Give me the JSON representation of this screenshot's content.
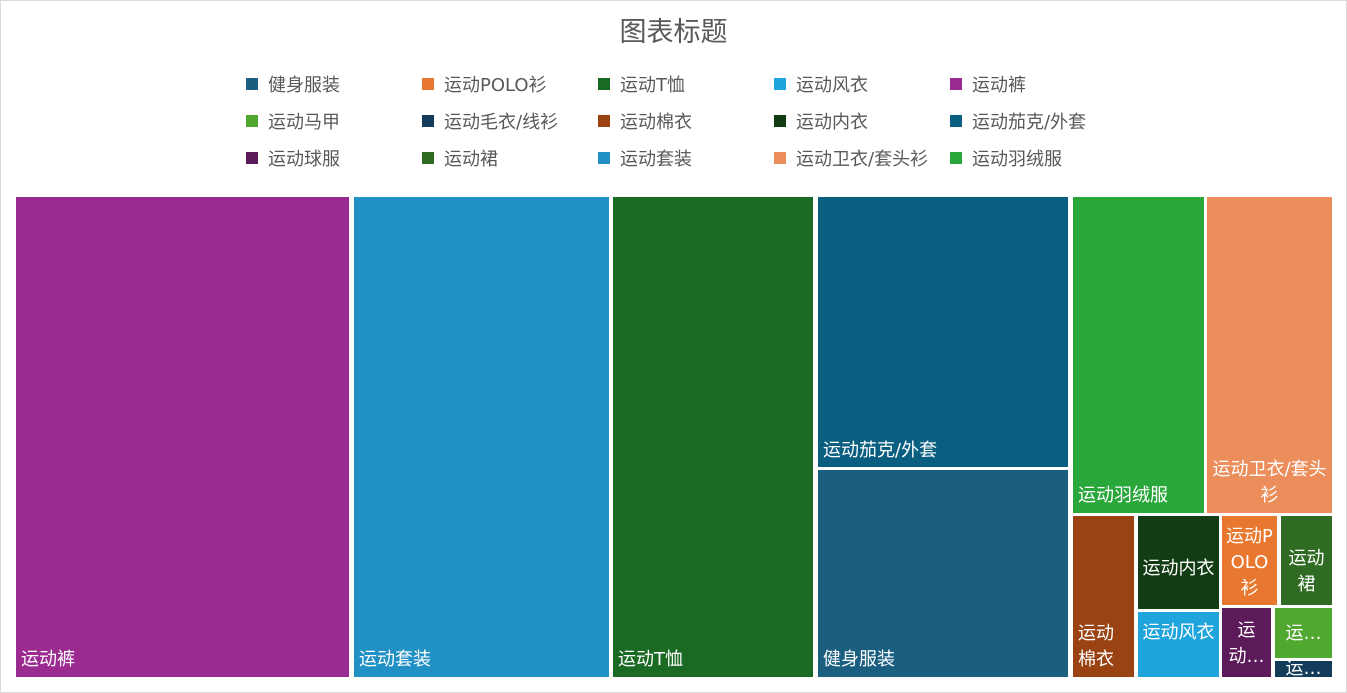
{
  "chart_data": {
    "type": "treemap",
    "title": "图表标题",
    "legend": {
      "position": "top",
      "items": [
        {
          "name": "健身服装",
          "color": "#1a5e80"
        },
        {
          "name": "运动POLO衫",
          "color": "#e8782f"
        },
        {
          "name": "运动T恤",
          "color": "#1b6a23"
        },
        {
          "name": "运动风衣",
          "color": "#1fa4dc"
        },
        {
          "name": "运动裤",
          "color": "#9c2b91"
        },
        {
          "name": "运动马甲",
          "color": "#51a830"
        },
        {
          "name": "运动毛衣/线衫",
          "color": "#133c5a"
        },
        {
          "name": "运动棉衣",
          "color": "#9a4212"
        },
        {
          "name": "运动内衣",
          "color": "#123d14"
        },
        {
          "name": "运动茄克/外套",
          "color": "#0a5e80"
        },
        {
          "name": "运动球服",
          "color": "#5d1a5a"
        },
        {
          "name": "运动裙",
          "color": "#2f6b23"
        },
        {
          "name": "运动套装",
          "color": "#2190c4"
        },
        {
          "name": "运动卫衣/套头衫",
          "color": "#ec8d5c"
        },
        {
          "name": "运动羽绒服",
          "color": "#2aa73b"
        }
      ]
    },
    "tiles": [
      {
        "name": "运动裤",
        "label": "运动裤",
        "value": 28.0,
        "color": "#9c2b91"
      },
      {
        "name": "运动套装",
        "label": "运动套装",
        "value": 21.5,
        "color": "#2190c4"
      },
      {
        "name": "运动T恤",
        "label": "运动T恤",
        "value": 16.9,
        "color": "#1b6a23"
      },
      {
        "name": "运动茄克/外套",
        "label": "运动茄克/外套",
        "value": 11.7,
        "color": "#0a5e80"
      },
      {
        "name": "健身服装",
        "label": "健身服装",
        "value": 9.3,
        "color": "#1a5e80"
      },
      {
        "name": "运动羽绒服",
        "label": "运动羽绒服",
        "value": 6.9,
        "color": "#2aa73b"
      },
      {
        "name": "运动卫衣/套头衫",
        "label": "运动卫衣/套头衫",
        "value": 6.9,
        "color": "#ec8d5c"
      },
      {
        "name": "运动棉衣",
        "label": "运动棉衣",
        "value": 1.9,
        "color": "#9a4212"
      },
      {
        "name": "运动内衣",
        "label": "运动内衣",
        "value": 1.4,
        "color": "#123d14"
      },
      {
        "name": "运动风衣",
        "label": "运动风衣",
        "value": 1.1,
        "color": "#1fa4dc"
      },
      {
        "name": "运动POLO衫",
        "label": "运动POLO衫",
        "value": 1.0,
        "color": "#e8782f"
      },
      {
        "name": "运动裙",
        "label": "运动裙",
        "value": 0.9,
        "color": "#2f6b23"
      },
      {
        "name": "运动球服",
        "label": "运动…",
        "value": 0.8,
        "color": "#5d1a5a"
      },
      {
        "name": "运动马甲",
        "label": "运…",
        "value": 0.6,
        "color": "#51a830"
      },
      {
        "name": "运动毛衣/线衫",
        "label": "运…",
        "value": 0.2,
        "color": "#133c5a"
      }
    ]
  }
}
